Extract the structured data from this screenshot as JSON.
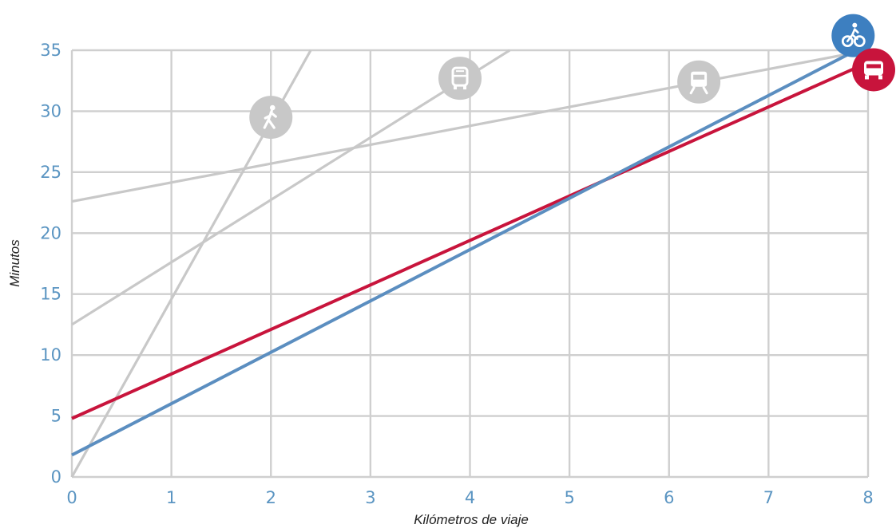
{
  "chart_data": {
    "type": "line",
    "xlabel": "Kilómetros de viaje",
    "ylabel": "Minutos",
    "xlim": [
      0,
      8
    ],
    "ylim": [
      0,
      35
    ],
    "x_ticks": [
      "0",
      "1",
      "2",
      "3",
      "4",
      "5",
      "6",
      "7",
      "8"
    ],
    "y_ticks": [
      "0",
      "5",
      "10",
      "15",
      "20",
      "25",
      "30",
      "35"
    ],
    "grid": true,
    "legend": "none (icons at line ends)",
    "series": [
      {
        "id": "walk",
        "icon": "pedestrian-icon",
        "color": "#c8c8c8",
        "emphasis": false,
        "points": [
          [
            0,
            0
          ],
          [
            2.4,
            35
          ]
        ]
      },
      {
        "id": "bus",
        "icon": "bus-icon",
        "color": "#c8c8c8",
        "emphasis": false,
        "points": [
          [
            0,
            12.5
          ],
          [
            4.4,
            35
          ]
        ]
      },
      {
        "id": "metro",
        "icon": "train-icon",
        "color": "#c8c8c8",
        "emphasis": false,
        "points": [
          [
            0,
            22.6
          ],
          [
            8,
            35
          ]
        ]
      },
      {
        "id": "car",
        "icon": "car-icon",
        "color": "#c8143c",
        "emphasis": true,
        "points": [
          [
            0,
            4.8
          ],
          [
            8,
            34
          ]
        ]
      },
      {
        "id": "bike",
        "icon": "bicycle-icon",
        "color": "#5b8ec0",
        "emphasis": true,
        "points": [
          [
            0,
            1.8
          ],
          [
            8,
            35.5
          ]
        ]
      }
    ],
    "icon_markers": [
      {
        "series": "walk",
        "icon": "pedestrian-icon",
        "x": 2.0,
        "y": 29.5,
        "color": "#c8c8c8"
      },
      {
        "series": "bus",
        "icon": "bus-icon",
        "x": 3.9,
        "y": 32.7,
        "color": "#c8c8c8"
      },
      {
        "series": "metro",
        "icon": "train-icon",
        "x": 6.3,
        "y": 32.4,
        "color": "#c8c8c8"
      },
      {
        "series": "bike",
        "icon": "bicycle-icon",
        "x": 7.85,
        "y": 36.2,
        "color": "#3d7fc0"
      },
      {
        "series": "car",
        "icon": "car-icon",
        "x": 8.1,
        "y": 33.4,
        "color": "#c8143c"
      }
    ]
  }
}
